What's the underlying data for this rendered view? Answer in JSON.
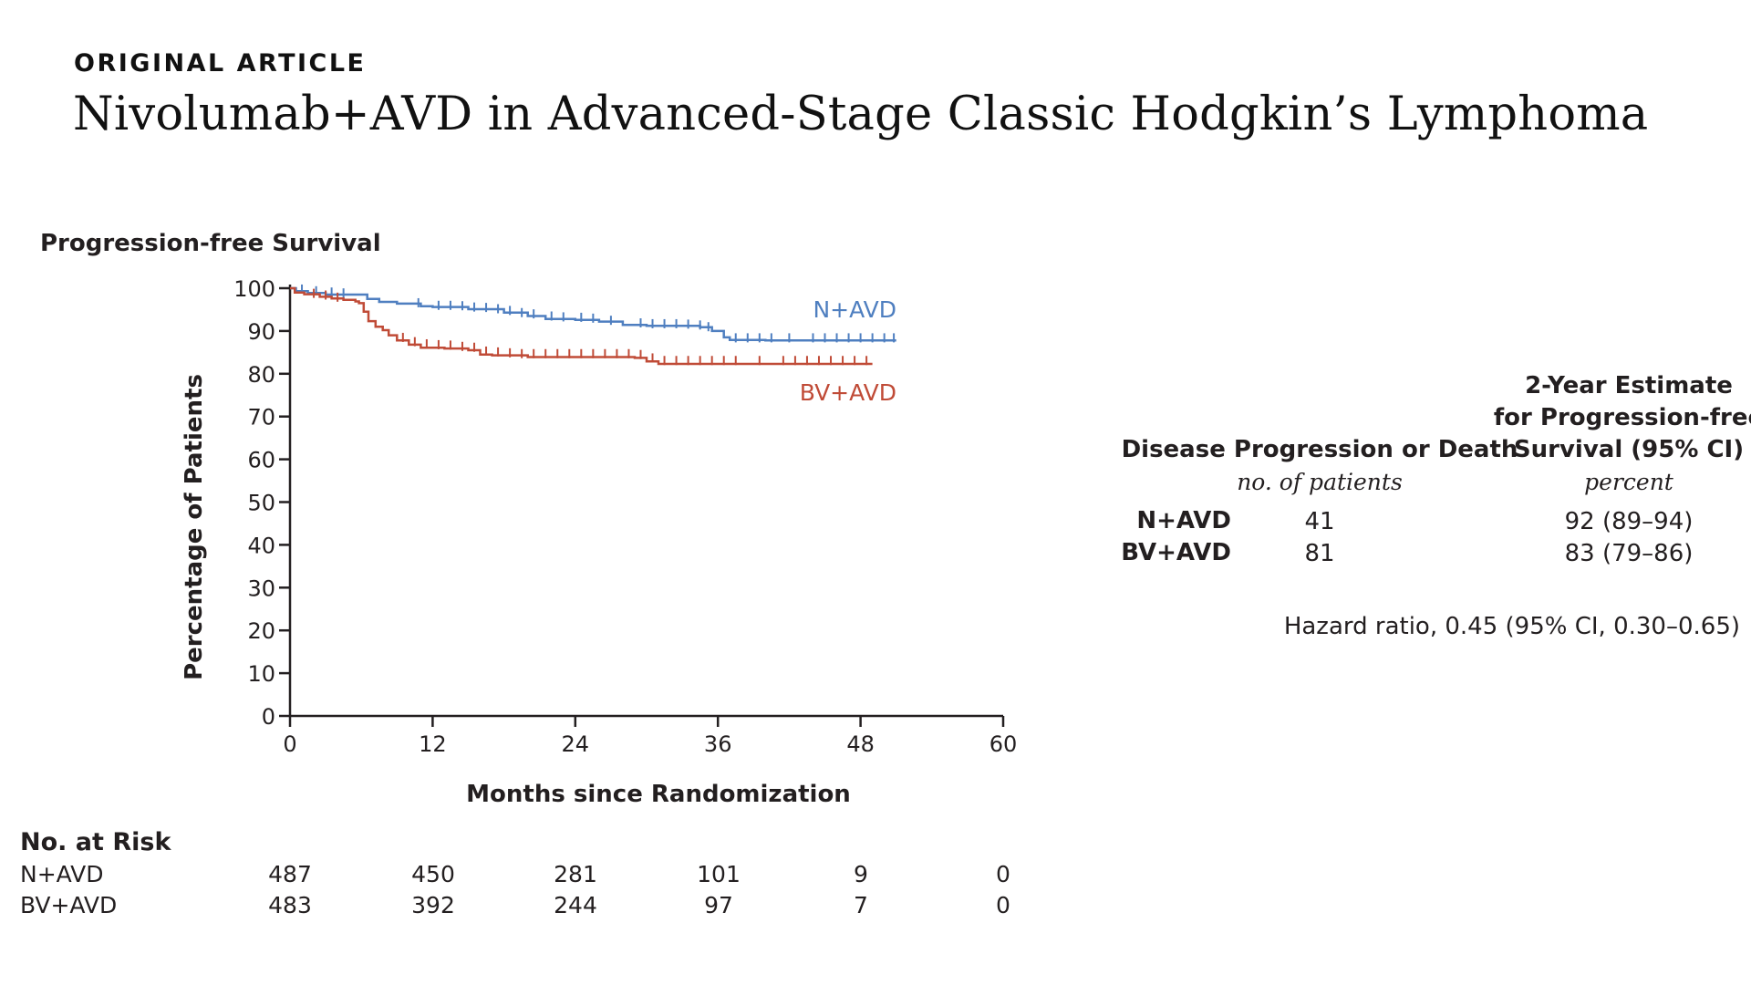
{
  "header": {
    "eyebrow": "ORIGINAL ARTICLE",
    "title": "Nivolumab+AVD in Advanced-Stage Classic Hodgkin’s Lymphoma"
  },
  "chart_data": {
    "type": "line",
    "title": "Progression-free Survival",
    "xlabel": "Months since Randomization",
    "ylabel": "Percentage of Patients",
    "xlim": [
      0,
      60
    ],
    "ylim": [
      0,
      100
    ],
    "xticks": [
      0,
      12,
      24,
      36,
      48,
      60
    ],
    "yticks": [
      0,
      10,
      20,
      30,
      40,
      50,
      60,
      70,
      80,
      90,
      100
    ],
    "series": [
      {
        "name": "N+AVD",
        "color": "#4f7fc0",
        "points": [
          [
            0,
            100
          ],
          [
            0.5,
            99.3
          ],
          [
            1.5,
            98.9
          ],
          [
            3,
            98.5
          ],
          [
            5,
            98.5
          ],
          [
            6.5,
            97.5
          ],
          [
            7.5,
            96.8
          ],
          [
            9,
            96.4
          ],
          [
            11,
            95.8
          ],
          [
            12,
            95.6
          ],
          [
            15,
            95.1
          ],
          [
            18,
            94.3
          ],
          [
            20,
            93.5
          ],
          [
            21.5,
            92.8
          ],
          [
            24,
            92.6
          ],
          [
            26,
            92.2
          ],
          [
            28,
            91.4
          ],
          [
            30,
            91.2
          ],
          [
            33,
            91.2
          ],
          [
            34.5,
            90.9
          ],
          [
            35.5,
            90
          ],
          [
            36.5,
            88.5
          ],
          [
            37,
            87.9
          ],
          [
            40,
            87.8
          ],
          [
            43,
            87.8
          ],
          [
            51,
            87.8
          ]
        ],
        "censor_marks": [
          [
            1,
            99.8
          ],
          [
            2.2,
            99.4
          ],
          [
            3.5,
            99.1
          ],
          [
            4.5,
            98.9
          ],
          [
            10.8,
            96.6
          ],
          [
            12.5,
            96.0
          ],
          [
            13.5,
            96.0
          ],
          [
            14.5,
            95.9
          ],
          [
            15.5,
            95.6
          ],
          [
            16.5,
            95.5
          ],
          [
            17.5,
            95.2
          ],
          [
            18.5,
            94.8
          ],
          [
            19.5,
            94.3
          ],
          [
            20.5,
            94.0
          ],
          [
            22,
            93.5
          ],
          [
            23,
            93.3
          ],
          [
            24.5,
            93.2
          ],
          [
            25.5,
            93.0
          ],
          [
            27,
            92.5
          ],
          [
            29.5,
            91.9
          ],
          [
            30.5,
            91.7
          ],
          [
            31.5,
            91.7
          ],
          [
            32.5,
            91.7
          ],
          [
            33.5,
            91.6
          ],
          [
            34.5,
            91.4
          ],
          [
            35.2,
            91.0
          ],
          [
            37.5,
            88.4
          ],
          [
            38.5,
            88.4
          ],
          [
            39.5,
            88.4
          ],
          [
            40.5,
            88.4
          ],
          [
            42,
            88.4
          ],
          [
            44,
            88.4
          ],
          [
            45,
            88.4
          ],
          [
            46,
            88.4
          ],
          [
            47,
            88.4
          ],
          [
            48,
            88.4
          ],
          [
            49,
            88.4
          ],
          [
            50,
            88.4
          ],
          [
            50.8,
            88.4
          ]
        ]
      },
      {
        "name": "BV+AVD",
        "color": "#c04b37",
        "points": [
          [
            0,
            100
          ],
          [
            0.4,
            99
          ],
          [
            1.2,
            98.6
          ],
          [
            2.5,
            98
          ],
          [
            3.5,
            97.6
          ],
          [
            4.5,
            97.3
          ],
          [
            5.5,
            96.9
          ],
          [
            5.8,
            96.5
          ],
          [
            6.2,
            94.5
          ],
          [
            6.6,
            92.3
          ],
          [
            7.2,
            91
          ],
          [
            7.8,
            90.2
          ],
          [
            8.3,
            89
          ],
          [
            9,
            87.8
          ],
          [
            10,
            86.8
          ],
          [
            11,
            86.1
          ],
          [
            13,
            85.9
          ],
          [
            15,
            85.5
          ],
          [
            16,
            84.5
          ],
          [
            17,
            84.3
          ],
          [
            20,
            83.9
          ],
          [
            23,
            83.9
          ],
          [
            27,
            83.9
          ],
          [
            29,
            83.7
          ],
          [
            30,
            82.9
          ],
          [
            31,
            82.3
          ],
          [
            35,
            82.3
          ],
          [
            40,
            82.3
          ],
          [
            49,
            82.3
          ]
        ],
        "censor_marks": [
          [
            2,
            98.8
          ],
          [
            3,
            98.4
          ],
          [
            4,
            97.9
          ],
          [
            9.5,
            88.5
          ],
          [
            10.5,
            87.5
          ],
          [
            11.5,
            87.0
          ],
          [
            12.5,
            86.8
          ],
          [
            13.5,
            86.7
          ],
          [
            14.5,
            86.4
          ],
          [
            15.5,
            86.2
          ],
          [
            16.5,
            85.3
          ],
          [
            17.5,
            85.1
          ],
          [
            18.5,
            84.9
          ],
          [
            19.5,
            84.7
          ],
          [
            20.5,
            84.7
          ],
          [
            21.5,
            84.7
          ],
          [
            22.5,
            84.7
          ],
          [
            23.5,
            84.7
          ],
          [
            24.5,
            84.7
          ],
          [
            25.5,
            84.7
          ],
          [
            26.5,
            84.7
          ],
          [
            27.5,
            84.7
          ],
          [
            28.5,
            84.7
          ],
          [
            29.5,
            84.5
          ],
          [
            30.5,
            83.7
          ],
          [
            31.5,
            83.1
          ],
          [
            32.5,
            83.1
          ],
          [
            33.5,
            83.1
          ],
          [
            34.5,
            83.1
          ],
          [
            35.5,
            83.1
          ],
          [
            36.5,
            83.1
          ],
          [
            37.5,
            83.1
          ],
          [
            39.5,
            83.1
          ],
          [
            41.5,
            83.1
          ],
          [
            42.5,
            83.1
          ],
          [
            43.5,
            83.1
          ],
          [
            44.5,
            83.1
          ],
          [
            45.5,
            83.1
          ],
          [
            46.5,
            83.1
          ],
          [
            47.5,
            83.1
          ],
          [
            48.5,
            83.1
          ]
        ]
      }
    ]
  },
  "summary_table": {
    "col1_header": "Disease Progression or Death",
    "col1_sub": "no. of patients",
    "col2_header": [
      "2-Year Estimate",
      "for Progression-free",
      "Survival (95% CI)"
    ],
    "col2_sub": "percent",
    "rows": [
      {
        "label": "N+AVD",
        "events": "41",
        "estimate": "92 (89–94)"
      },
      {
        "label": "BV+AVD",
        "events": "81",
        "estimate": "83 (79–86)"
      }
    ],
    "hazard_ratio": "Hazard ratio, 0.45 (95% CI, 0.30–0.65)"
  },
  "at_risk": {
    "title": "No. at Risk",
    "rows": [
      {
        "label": "N+AVD",
        "values": [
          "487",
          "450",
          "281",
          "101",
          "9",
          "0"
        ]
      },
      {
        "label": "BV+AVD",
        "values": [
          "483",
          "392",
          "244",
          "97",
          "7",
          "0"
        ]
      }
    ]
  }
}
